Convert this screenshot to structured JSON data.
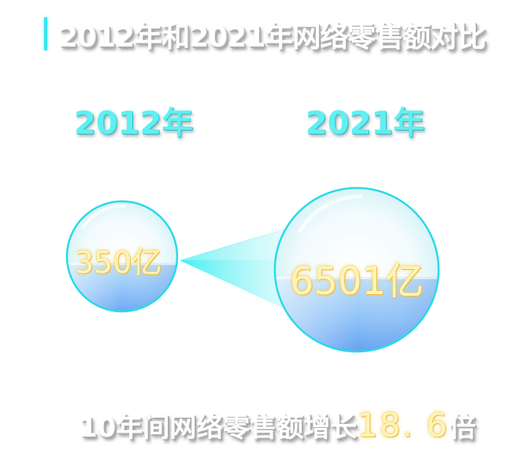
{
  "title": "2012年和2021年网络零售额对比",
  "years": {
    "left": "2012年",
    "right": "2021年"
  },
  "bubbles": {
    "small_value": "350亿",
    "large_value": "6501亿"
  },
  "summary": {
    "prefix": "10年间网络零售额增长",
    "multiple": "18. 6",
    "suffix": "倍"
  },
  "colors": {
    "accent": "#35e6f0",
    "value": "#fff3b8",
    "bubble_blue": "#6aa8f5"
  }
}
